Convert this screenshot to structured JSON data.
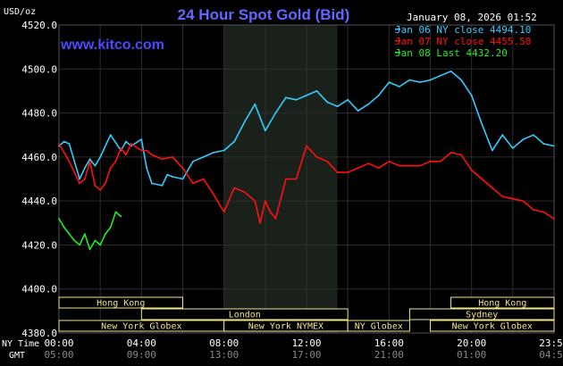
{
  "chart_data": {
    "type": "line",
    "title": "24 Hour Spot Gold (Bid)",
    "watermark": "www.kitco.com",
    "timestamp": "January 08, 2026 01:52",
    "ylabel": "USD/oz",
    "ylim": [
      4380,
      4520
    ],
    "y_ticks": [
      "4520.0",
      "4500.0",
      "4480.0",
      "4460.0",
      "4440.0",
      "4420.0",
      "4400.0",
      "4380.0"
    ],
    "x_axis": {
      "row_labels": [
        "NY Time",
        "GMT"
      ],
      "ny_ticks": [
        "00:00",
        "04:00",
        "08:00",
        "12:00",
        "16:00",
        "20:00",
        "23:59"
      ],
      "gmt_ticks": [
        "05:00",
        "09:00",
        "13:00",
        "17:00",
        "21:00",
        "01:00",
        "04:59"
      ]
    },
    "grid": true,
    "legend": {
      "placement": "top-right",
      "entries": [
        "Jan 06 NY close 4494.10",
        "Jan 07 NY close 4455.50",
        "Jan 08 Last 4432.20"
      ]
    },
    "colors": {
      "series_1": "#33ccff",
      "series_2": "#ff1111",
      "series_3": "#22ee22",
      "title": "#6666ff",
      "highlight": "#1a201a",
      "session": "#f0e68c"
    },
    "sessions": [
      {
        "label": "Hong Kong",
        "start": 0.0,
        "end": 6.0
      },
      {
        "label": "London",
        "start": 4.0,
        "end": 14.0
      },
      {
        "label": "New York Globex",
        "start": 0.0,
        "end": 8.0
      },
      {
        "label": "New York NYMEX",
        "start": 8.0,
        "end": 14.0
      },
      {
        "label": "NY Globex",
        "start": 14.0,
        "end": 17.0
      },
      {
        "label": "Hong Kong",
        "start": 19.0,
        "end": 24.0
      },
      {
        "label": "Sydney",
        "start": 17.0,
        "end": 24.0
      },
      {
        "label": "New York Globex",
        "start": 18.0,
        "end": 24.0
      }
    ],
    "highlight_range": [
      8.0,
      13.5
    ],
    "x_range": [
      0,
      24
    ],
    "series": [
      {
        "x": [
          0,
          0.25,
          0.5,
          0.75,
          1,
          1.25,
          1.5,
          1.75,
          2,
          2.5,
          3,
          3.25,
          3.5,
          4,
          4.25,
          4.5,
          5,
          5.25,
          5.5,
          6,
          6.5,
          7,
          7.5,
          8,
          8.5,
          9,
          9.5,
          10,
          10.5,
          11,
          11.5,
          12,
          12.5,
          13,
          13.5,
          14,
          14.5,
          15,
          15.5,
          16,
          16.5,
          17,
          17.5,
          18,
          18.5,
          19,
          19.5,
          20,
          20.5,
          21,
          21.5,
          22,
          22.5,
          23,
          23.5,
          23.99
        ],
        "values": [
          4465,
          4467,
          4466,
          4458,
          4450,
          4455,
          4459,
          4456,
          4460,
          4470,
          4463,
          4467,
          4465,
          4468,
          4455,
          4448,
          4447,
          4452,
          4451,
          4450,
          4458,
          4460,
          4462,
          4463,
          4467,
          4476,
          4484,
          4472,
          4480,
          4487,
          4486,
          4488,
          4490,
          4485,
          4483,
          4486,
          4481,
          4484,
          4488,
          4494,
          4492,
          4495,
          4494,
          4495,
          4497,
          4499,
          4495,
          4488,
          4475,
          4463,
          4470,
          4464,
          4468,
          4470,
          4466,
          4465
        ]
      },
      {
        "x": [
          0,
          0.25,
          0.5,
          0.75,
          1,
          1.25,
          1.5,
          1.75,
          2,
          2.25,
          2.5,
          2.75,
          3,
          3.25,
          3.5,
          4,
          4.25,
          4.5,
          5,
          5.5,
          6,
          6.5,
          7,
          7.5,
          8,
          8.5,
          9,
          9.5,
          9.75,
          10,
          10.25,
          10.5,
          11,
          11.5,
          12,
          12.5,
          13,
          13.5,
          14,
          14.5,
          15,
          15.5,
          16,
          16.5,
          17,
          17.5,
          18,
          18.5,
          19,
          19.5,
          20,
          20.5,
          21,
          21.5,
          22,
          22.5,
          23,
          23.5,
          23.99
        ],
        "values": [
          4466,
          4462,
          4458,
          4453,
          4448,
          4450,
          4458,
          4447,
          4445,
          4448,
          4455,
          4458,
          4464,
          4461,
          4466,
          4463,
          4463,
          4461,
          4459,
          4460,
          4455,
          4448,
          4450,
          4443,
          4435,
          4446,
          4444,
          4440,
          4430,
          4440,
          4435,
          4432,
          4450,
          4450,
          4465,
          4460,
          4458,
          4453,
          4453,
          4455,
          4457,
          4455,
          4458,
          4456,
          4456,
          4456,
          4458,
          4458,
          4462,
          4461,
          4454,
          4450,
          4446,
          4442,
          4441,
          4440,
          4436,
          4435,
          4432
        ]
      },
      {
        "x": [
          0,
          0.25,
          0.5,
          0.75,
          1,
          1.25,
          1.5,
          1.75,
          2,
          2.25,
          2.5,
          2.75,
          3
        ],
        "values": [
          4432,
          4428,
          4425,
          4422,
          4420,
          4425,
          4418,
          4422,
          4420,
          4425,
          4428,
          4435,
          4433
        ]
      }
    ]
  }
}
